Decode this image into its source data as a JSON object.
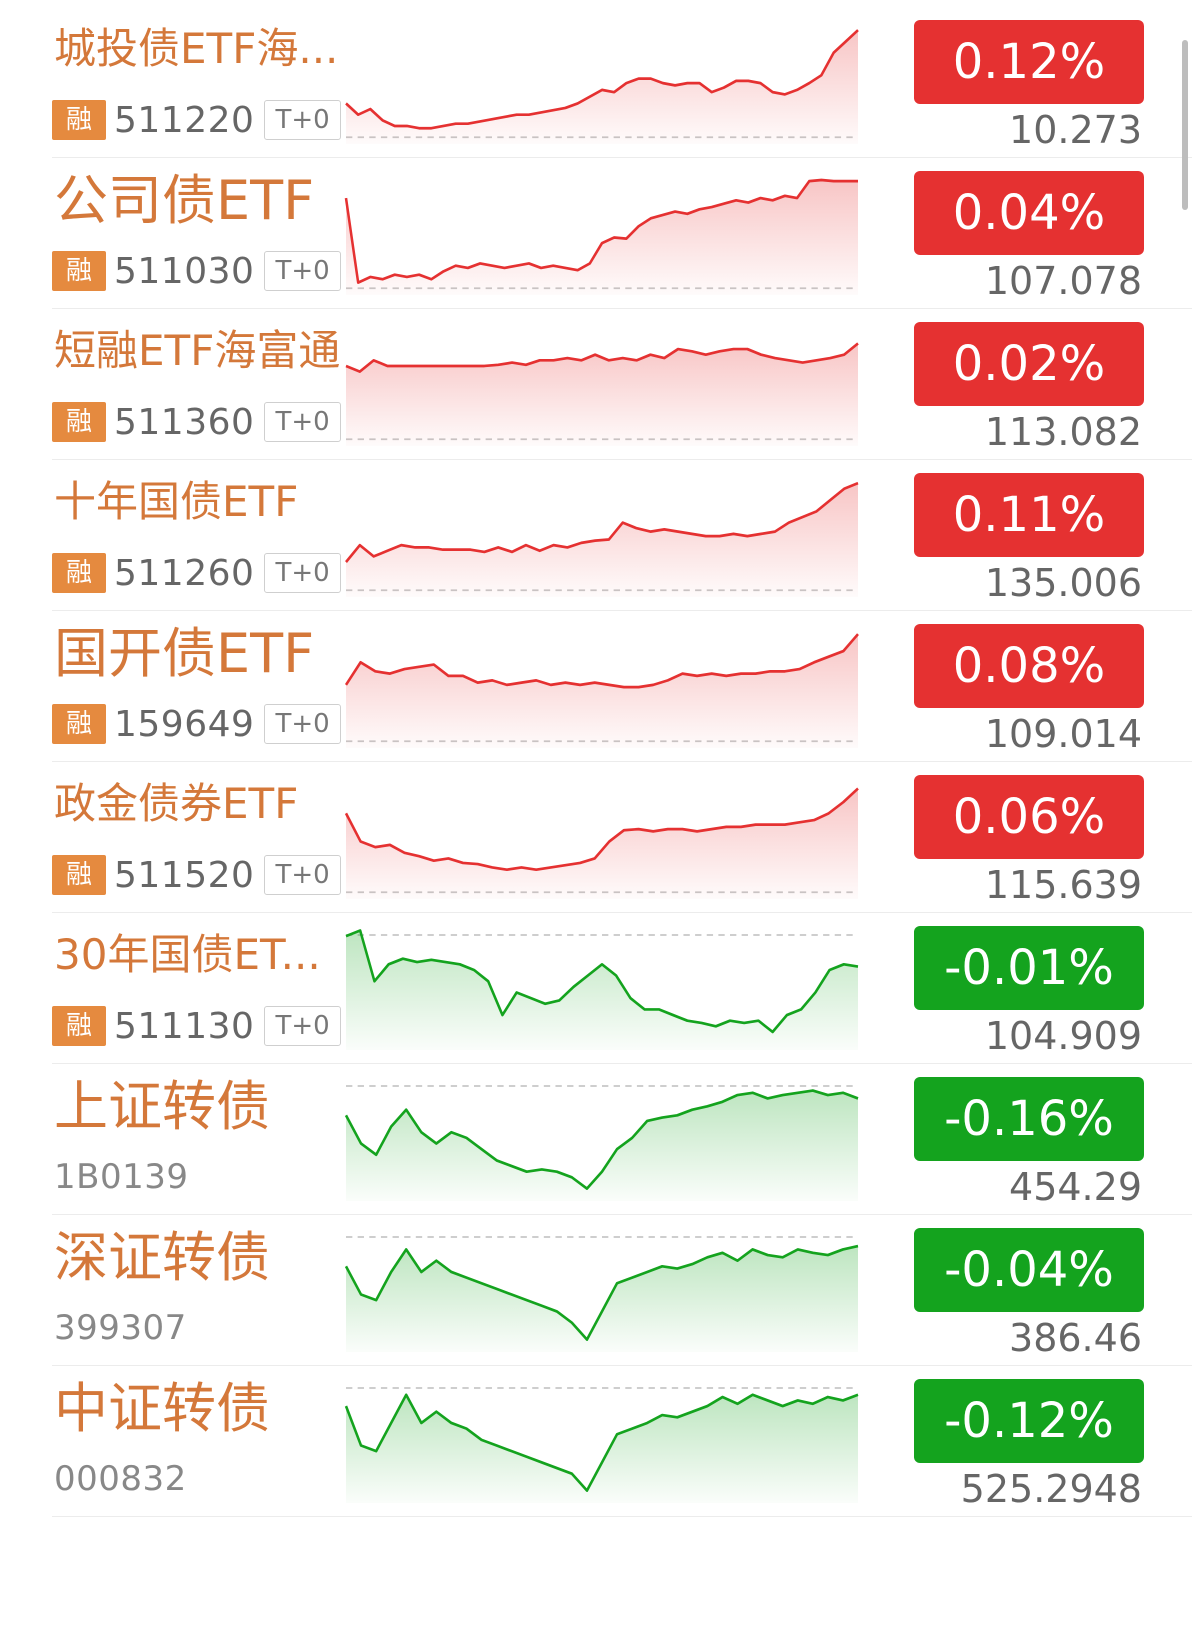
{
  "colors": {
    "up": "#e53131",
    "down": "#14a31e",
    "name": "#d4783a",
    "badge": "#e58a3f"
  },
  "badge_label": "融",
  "tag_label": "T+0",
  "items": [
    {
      "name": "城投债ETF海...",
      "code": "511220",
      "margin": true,
      "t0": true,
      "change": "0.12%",
      "price": "10.273",
      "trend": "up",
      "name_size": "small",
      "sparkline": [
        0.7,
        0.8,
        0.75,
        0.85,
        0.9,
        0.9,
        0.92,
        0.92,
        0.9,
        0.88,
        0.88,
        0.86,
        0.84,
        0.82,
        0.8,
        0.8,
        0.78,
        0.76,
        0.74,
        0.7,
        0.64,
        0.58,
        0.6,
        0.52,
        0.48,
        0.48,
        0.52,
        0.54,
        0.52,
        0.52,
        0.6,
        0.56,
        0.5,
        0.5,
        0.52,
        0.6,
        0.62,
        0.58,
        0.52,
        0.45,
        0.25,
        0.15,
        0.05
      ]
    },
    {
      "name": "公司债ETF",
      "code": "511030",
      "margin": true,
      "t0": true,
      "change": "0.04%",
      "price": "107.078",
      "trend": "up",
      "name_size": "big",
      "sparkline": [
        0.2,
        0.95,
        0.9,
        0.92,
        0.88,
        0.9,
        0.88,
        0.92,
        0.85,
        0.8,
        0.82,
        0.78,
        0.8,
        0.82,
        0.8,
        0.78,
        0.82,
        0.8,
        0.82,
        0.84,
        0.78,
        0.6,
        0.55,
        0.56,
        0.45,
        0.38,
        0.35,
        0.32,
        0.34,
        0.3,
        0.28,
        0.25,
        0.22,
        0.24,
        0.2,
        0.22,
        0.18,
        0.2,
        0.05,
        0.04,
        0.05,
        0.05,
        0.05
      ]
    },
    {
      "name": "短融ETF海富通",
      "code": "511360",
      "margin": true,
      "t0": true,
      "change": "0.02%",
      "price": "113.082",
      "trend": "up",
      "name_size": "small",
      "sparkline": [
        0.35,
        0.4,
        0.3,
        0.35,
        0.35,
        0.35,
        0.35,
        0.35,
        0.35,
        0.35,
        0.35,
        0.34,
        0.32,
        0.34,
        0.3,
        0.3,
        0.28,
        0.3,
        0.25,
        0.3,
        0.28,
        0.3,
        0.25,
        0.28,
        0.2,
        0.22,
        0.25,
        0.22,
        0.2,
        0.2,
        0.25,
        0.28,
        0.3,
        0.32,
        0.3,
        0.28,
        0.25,
        0.15
      ]
    },
    {
      "name": "十年国债ETF",
      "code": "511260",
      "margin": true,
      "t0": true,
      "change": "0.11%",
      "price": "135.006",
      "trend": "up",
      "name_size": "small",
      "sparkline": [
        0.75,
        0.6,
        0.7,
        0.65,
        0.6,
        0.62,
        0.62,
        0.64,
        0.64,
        0.64,
        0.66,
        0.62,
        0.66,
        0.6,
        0.65,
        0.6,
        0.62,
        0.58,
        0.56,
        0.55,
        0.4,
        0.45,
        0.48,
        0.46,
        0.48,
        0.5,
        0.52,
        0.52,
        0.5,
        0.52,
        0.5,
        0.48,
        0.4,
        0.35,
        0.3,
        0.2,
        0.1,
        0.05
      ]
    },
    {
      "name": "国开债ETF",
      "code": "159649",
      "margin": true,
      "t0": true,
      "change": "0.08%",
      "price": "109.014",
      "trend": "up",
      "name_size": "big",
      "sparkline": [
        0.5,
        0.3,
        0.38,
        0.4,
        0.36,
        0.34,
        0.32,
        0.42,
        0.42,
        0.48,
        0.46,
        0.5,
        0.48,
        0.46,
        0.5,
        0.48,
        0.5,
        0.48,
        0.5,
        0.52,
        0.52,
        0.5,
        0.46,
        0.4,
        0.42,
        0.4,
        0.42,
        0.4,
        0.4,
        0.38,
        0.38,
        0.36,
        0.3,
        0.25,
        0.2,
        0.05
      ]
    },
    {
      "name": "政金债券ETF",
      "code": "511520",
      "margin": true,
      "t0": true,
      "change": "0.06%",
      "price": "115.639",
      "trend": "up",
      "name_size": "small",
      "sparkline": [
        0.3,
        0.55,
        0.6,
        0.58,
        0.65,
        0.68,
        0.72,
        0.7,
        0.74,
        0.75,
        0.78,
        0.8,
        0.78,
        0.8,
        0.78,
        0.76,
        0.74,
        0.7,
        0.55,
        0.45,
        0.44,
        0.46,
        0.44,
        0.44,
        0.46,
        0.44,
        0.42,
        0.42,
        0.4,
        0.4,
        0.4,
        0.38,
        0.36,
        0.3,
        0.2,
        0.08
      ]
    },
    {
      "name": "30年国债ET...",
      "code": "511130",
      "margin": true,
      "t0": true,
      "change": "-0.01%",
      "price": "104.909",
      "trend": "down",
      "name_size": "small",
      "sparkline": [
        0.05,
        0.0,
        0.45,
        0.3,
        0.25,
        0.28,
        0.26,
        0.28,
        0.3,
        0.35,
        0.45,
        0.75,
        0.55,
        0.6,
        0.65,
        0.62,
        0.5,
        0.4,
        0.3,
        0.4,
        0.6,
        0.7,
        0.7,
        0.75,
        0.8,
        0.82,
        0.85,
        0.8,
        0.82,
        0.8,
        0.9,
        0.75,
        0.7,
        0.55,
        0.35,
        0.3,
        0.32
      ]
    },
    {
      "name": "上证转债",
      "code": "1B0139",
      "margin": false,
      "t0": false,
      "change": "-0.16%",
      "price": "454.29",
      "trend": "down",
      "name_size": "big",
      "sparkline": [
        0.3,
        0.55,
        0.65,
        0.4,
        0.25,
        0.45,
        0.55,
        0.45,
        0.5,
        0.6,
        0.7,
        0.75,
        0.8,
        0.78,
        0.8,
        0.85,
        0.95,
        0.8,
        0.6,
        0.5,
        0.35,
        0.32,
        0.3,
        0.25,
        0.22,
        0.18,
        0.12,
        0.1,
        0.15,
        0.12,
        0.1,
        0.08,
        0.12,
        0.1,
        0.15
      ]
    },
    {
      "name": "深证转债",
      "code": "399307",
      "margin": false,
      "t0": false,
      "change": "-0.04%",
      "price": "386.46",
      "trend": "down",
      "name_size": "big",
      "sparkline": [
        0.3,
        0.55,
        0.6,
        0.35,
        0.15,
        0.35,
        0.25,
        0.35,
        0.4,
        0.45,
        0.5,
        0.55,
        0.6,
        0.65,
        0.7,
        0.8,
        0.95,
        0.7,
        0.45,
        0.4,
        0.35,
        0.3,
        0.32,
        0.28,
        0.22,
        0.18,
        0.25,
        0.15,
        0.2,
        0.22,
        0.15,
        0.18,
        0.2,
        0.15,
        0.12
      ]
    },
    {
      "name": "中证转债",
      "code": "000832",
      "margin": false,
      "t0": false,
      "change": "-0.12%",
      "price": "525.2948",
      "trend": "down",
      "name_size": "big",
      "sparkline": [
        0.2,
        0.55,
        0.6,
        0.35,
        0.1,
        0.35,
        0.25,
        0.35,
        0.4,
        0.5,
        0.55,
        0.6,
        0.65,
        0.7,
        0.75,
        0.8,
        0.95,
        0.7,
        0.45,
        0.4,
        0.35,
        0.28,
        0.3,
        0.25,
        0.2,
        0.12,
        0.18,
        0.1,
        0.15,
        0.2,
        0.15,
        0.18,
        0.12,
        0.15,
        0.1
      ]
    }
  ]
}
